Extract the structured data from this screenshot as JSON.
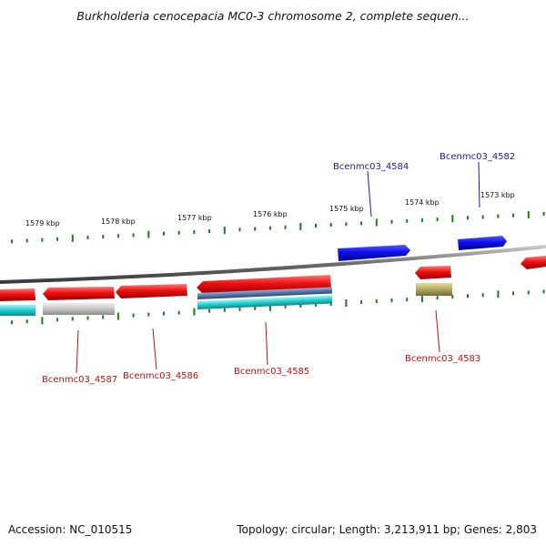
{
  "title": "Burkholderia cenocepacia MC0-3 chromosome 2, complete sequen...",
  "footer": {
    "accession": "Accession: NC_010515",
    "topology": "Topology: circular; Length: 3,213,911 bp; Genes: 2,803"
  },
  "colors": {
    "backbone": "#8a8a8a",
    "tick": "#1f7a1f",
    "gene_forward": "#1010ee",
    "gene_reverse": "#ee1010",
    "label_forward": "#1a1aaa",
    "label_reverse": "#c01010",
    "feature_cyan": "#20cccc",
    "feature_gray": "#c4c4c4",
    "feature_steel": "#5577aa",
    "feature_olive": "#b0a860"
  },
  "ruler": {
    "unit": "kbp",
    "labels": [
      "1579 kbp",
      "1578 kbp",
      "1577 kbp",
      "1576 kbp",
      "1575 kbp",
      "1574 kbp",
      "1573 kbp"
    ]
  },
  "genes": [
    {
      "name": "Bcenmc03_4582",
      "strand": "forward",
      "start_kbp": 1572.65,
      "end_kbp": 1573.15
    },
    {
      "name": "Bcenmc03_4584",
      "strand": "forward",
      "start_kbp": 1574.4,
      "end_kbp": 1575.3
    },
    {
      "name": "Bcenmc03_4583",
      "strand": "reverse",
      "start_kbp": 1573.6,
      "end_kbp": 1574.1
    },
    {
      "name": "Bcenmc03_4585",
      "strand": "reverse",
      "start_kbp": 1575.3,
      "end_kbp": 1577.1
    },
    {
      "name": "Bcenmc03_4586",
      "strand": "reverse",
      "start_kbp": 1577.1,
      "end_kbp": 1578.05
    },
    {
      "name": "Bcenmc03_4587",
      "strand": "reverse",
      "start_kbp": 1578.05,
      "end_kbp": 1579.0
    }
  ]
}
